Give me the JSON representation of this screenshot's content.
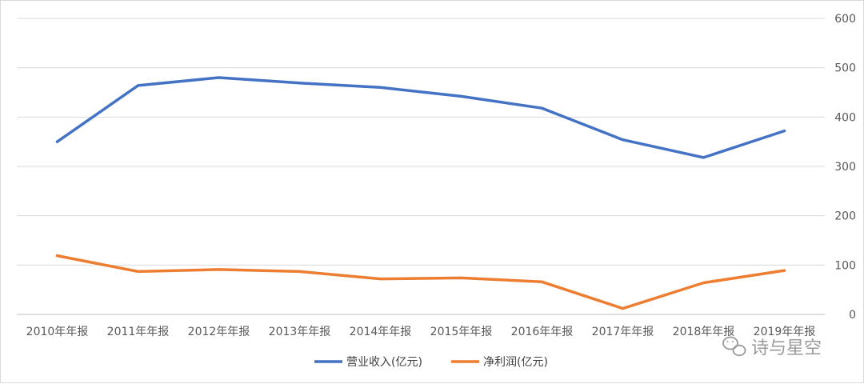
{
  "chart_data": {
    "type": "line",
    "categories": [
      "2010年年报",
      "2011年年报",
      "2012年年报",
      "2013年年报",
      "2014年年报",
      "2015年年报",
      "2016年年报",
      "2017年年报",
      "2018年年报",
      "2019年年报"
    ],
    "series": [
      {
        "name": "营业收入(亿元)",
        "color": "#4472C4",
        "values": [
          350,
          464,
          480,
          469,
          460,
          442,
          418,
          354,
          318,
          372
        ]
      },
      {
        "name": "净利润(亿元)",
        "color": "#ED7D31",
        "values": [
          119,
          87,
          91,
          87,
          72,
          74,
          66,
          12,
          64,
          89
        ]
      }
    ],
    "yaxis_position": "right",
    "ylim": [
      0,
      600
    ],
    "yticks": [
      0,
      100,
      200,
      300,
      400,
      500,
      600
    ],
    "grid": true,
    "legend": "bottom"
  },
  "watermark": {
    "text": "诗与星空",
    "icon": "wechat-icon"
  }
}
